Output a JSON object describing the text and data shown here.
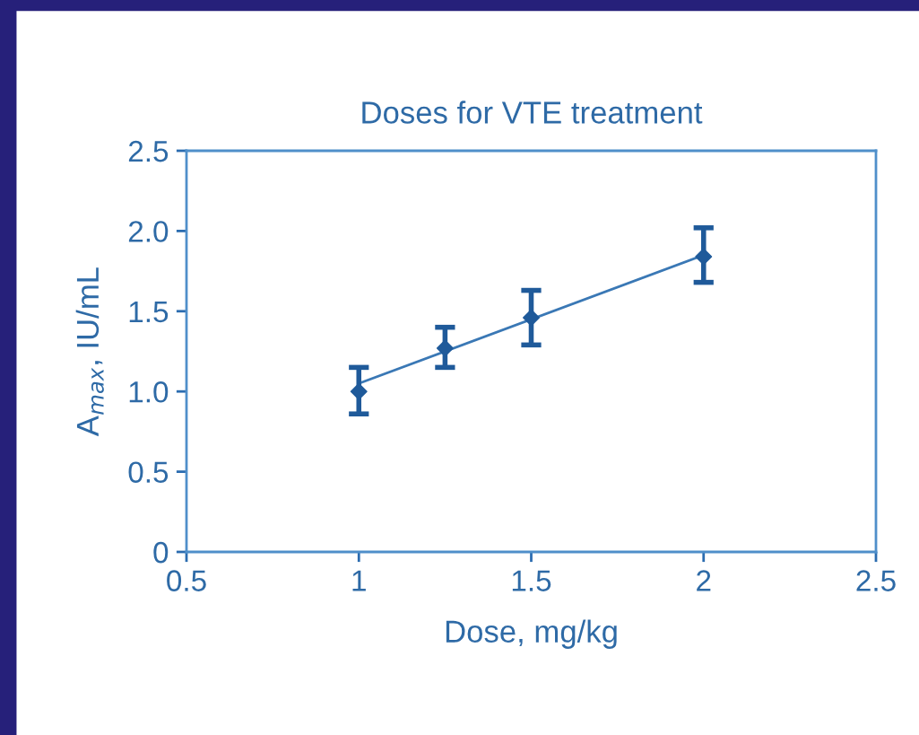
{
  "chart_data": {
    "type": "scatter",
    "title": "Doses for VTE treatment",
    "xlabel": "Dose, mg/kg",
    "ylabel": "A$_{max}$, IU/mL",
    "series": [
      {
        "color": "#1f5a9a",
        "x": [
          1,
          1.25,
          1.5,
          2
        ],
        "values": [
          1.0,
          1.27,
          1.46,
          1.84
        ],
        "errors": [
          [
            0.86,
            1.15
          ],
          [
            1.15,
            1.4
          ],
          [
            1.29,
            1.63
          ],
          [
            1.68,
            2.02
          ]
        ],
        "marker": "diamond"
      },
      {
        "type": "line",
        "color": "#3a78b5",
        "x": [
          1,
          2
        ],
        "values": [
          1.05,
          1.85
        ],
        "marker": "none",
        "line_style": "solid"
      }
    ],
    "xlim": [
      0.5,
      2.5
    ],
    "xticks": [
      0.5,
      1,
      1.5,
      2,
      2.5
    ],
    "ylim": [
      0,
      2.5
    ],
    "yticks": [
      0,
      {
        "value": 0.5,
        "label": "0.5"
      },
      {
        "value": 1,
        "label": "1.0"
      },
      {
        "value": 1.5,
        "label": "1.5"
      },
      {
        "value": 2,
        "label": "2.0"
      },
      {
        "value": 2.5,
        "label": "2.5"
      }
    ],
    "grid": false,
    "legend": false
  }
}
